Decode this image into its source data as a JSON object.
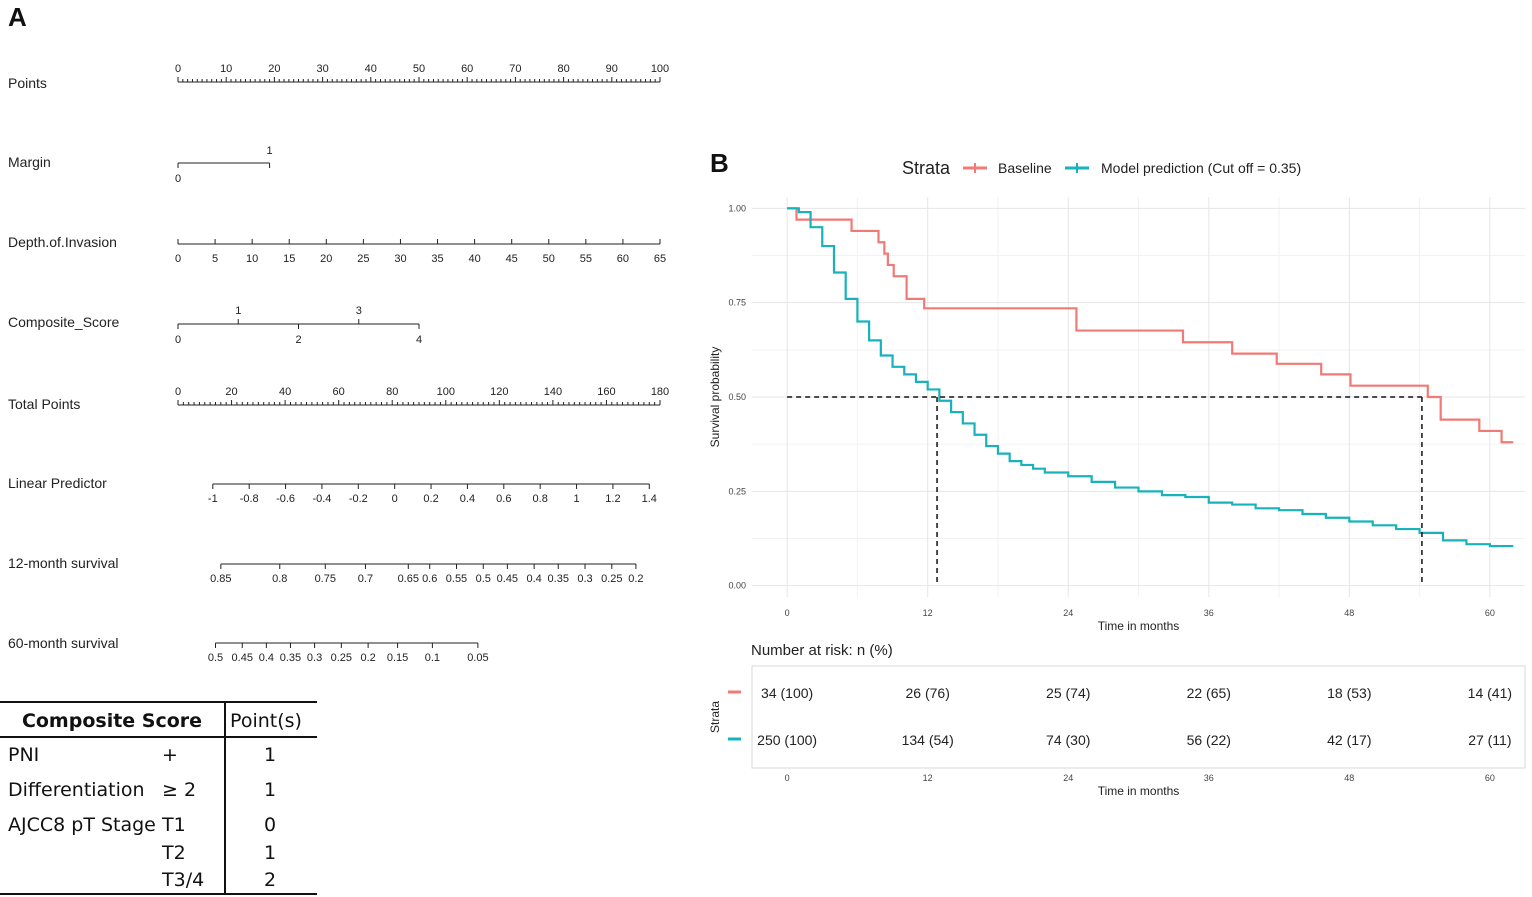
{
  "panel_a": {
    "letter": "A",
    "nomogram": {
      "rows": [
        {
          "name": "Points",
          "ticks": [
            "0",
            "10",
            "20",
            "30",
            "40",
            "50",
            "60",
            "70",
            "80",
            "90",
            "100"
          ],
          "values": [
            0,
            10,
            20,
            30,
            40,
            50,
            60,
            70,
            80,
            90,
            100
          ],
          "min_value": 0,
          "max_value": 100,
          "minor_step": 1
        },
        {
          "name": "Margin",
          "ticks": [
            "0",
            "1"
          ],
          "values": [
            0,
            1
          ],
          "points": [
            0,
            19
          ]
        },
        {
          "name": "Depth.of.Invasion",
          "ticks": [
            "0",
            "5",
            "10",
            "15",
            "20",
            "25",
            "30",
            "35",
            "40",
            "45",
            "50",
            "55",
            "60",
            "65"
          ],
          "values": [
            0,
            5,
            10,
            15,
            20,
            25,
            30,
            35,
            40,
            45,
            50,
            55,
            60,
            65
          ],
          "points_at_max": 100
        },
        {
          "name": "Composite_Score",
          "ticks": [
            "0",
            "1",
            "2",
            "3",
            "4"
          ],
          "values": [
            0,
            1,
            2,
            3,
            4
          ],
          "points_at_max": 50
        },
        {
          "name": "Total Points",
          "ticks": [
            "0",
            "20",
            "40",
            "60",
            "80",
            "100",
            "120",
            "140",
            "160",
            "180"
          ],
          "values": [
            0,
            20,
            40,
            60,
            80,
            100,
            120,
            140,
            160,
            180
          ],
          "min_value": 0,
          "max_value": 180,
          "minor_step": 2
        },
        {
          "name": "Linear Predictor",
          "ticks": [
            "-1",
            "-0.8",
            "-0.6",
            "-0.4",
            "-0.2",
            "0",
            "0.2",
            "0.4",
            "0.6",
            "0.8",
            "1",
            "1.2",
            "1.4"
          ],
          "values": [
            -1,
            -0.8,
            -0.6,
            -0.4,
            -0.2,
            0,
            0.2,
            0.4,
            0.6,
            0.8,
            1,
            1.2,
            1.4
          ],
          "total_points_range": [
            13,
            176
          ]
        },
        {
          "name": "12-month survival",
          "ticks": [
            "0.85",
            "0.8",
            "0.75",
            "0.7",
            "0.65",
            "0.6",
            "0.55",
            "0.5",
            "0.45",
            "0.4",
            "0.35",
            "0.3",
            "0.25",
            "0.2"
          ],
          "total_points_at": [
            16,
            38,
            55,
            70,
            86,
            94,
            104,
            114,
            123,
            133,
            142,
            152,
            162,
            171
          ]
        },
        {
          "name": "60-month survival",
          "ticks": [
            "0.5",
            "0.45",
            "0.4",
            "0.35",
            "0.3",
            "0.25",
            "0.2",
            "0.15",
            "0.1",
            "0.05"
          ],
          "total_points_at": [
            14,
            24,
            33,
            42,
            51,
            61,
            71,
            82,
            95,
            112
          ]
        }
      ]
    },
    "composite_table": {
      "header_left": "Composite Score",
      "header_right": "Point(s)",
      "rows": [
        {
          "item": "PNI",
          "level": "+",
          "points": "1"
        },
        {
          "item": "Differentiation",
          "level": "≥ 2",
          "points": "1"
        },
        {
          "item": "AJCC8 pT Stage",
          "level": "T1",
          "points": "0"
        },
        {
          "item": "",
          "level": "T2",
          "points": "1"
        },
        {
          "item": "",
          "level": "T3/4",
          "points": "2"
        }
      ]
    }
  },
  "panel_b": {
    "letter": "B",
    "legend": {
      "title": "Strata",
      "entries": [
        {
          "label": "Baseline",
          "color": "#f07a75"
        },
        {
          "label": "Model prediction (Cut off = 0.35)",
          "color": "#17b2bb"
        }
      ]
    },
    "chart_data": {
      "type": "line",
      "title": "",
      "xlabel": "Time in months",
      "ylabel": "Survival probability",
      "xlim": [
        -3,
        63
      ],
      "ylim": [
        -0.03,
        1.03
      ],
      "xticks": [
        0,
        12,
        24,
        36,
        48,
        60
      ],
      "yticks": [
        0.0,
        0.25,
        0.5,
        0.75,
        1.0
      ],
      "ytick_labels": [
        "0.00",
        "0.25",
        "0.50",
        "0.75",
        "1.00"
      ],
      "grid": true,
      "median_line": {
        "y": 0.5,
        "x_model": 12.8,
        "x_baseline": 54.2
      },
      "series": [
        {
          "name": "Baseline",
          "color": "#f07a75",
          "step": true,
          "x": [
            0,
            0.8,
            1.5,
            3,
            5.5,
            6.5,
            7.8,
            8.3,
            8.6,
            9.1,
            10.2,
            11.7,
            13.5,
            20,
            24.7,
            30,
            33.8,
            38,
            40,
            41.8,
            45.6,
            48.1,
            51,
            54.7,
            55.8,
            59.1,
            61,
            62
          ],
          "y": [
            1.0,
            0.97,
            0.97,
            0.97,
            0.94,
            0.94,
            0.91,
            0.88,
            0.85,
            0.82,
            0.76,
            0.735,
            0.735,
            0.735,
            0.676,
            0.676,
            0.645,
            0.615,
            0.615,
            0.588,
            0.56,
            0.53,
            0.53,
            0.5,
            0.44,
            0.41,
            0.38,
            0.38
          ]
        },
        {
          "name": "Model prediction (Cut off = 0.35)",
          "color": "#17b2bb",
          "step": true,
          "x": [
            0,
            1,
            2,
            3,
            4,
            5,
            6,
            7,
            8,
            9,
            10,
            11,
            12,
            13,
            14,
            15,
            16,
            17,
            18,
            19,
            20,
            21,
            22,
            24,
            26,
            28,
            30,
            32,
            34,
            36,
            38,
            40,
            42,
            44,
            46,
            48,
            50,
            52,
            54,
            56,
            58,
            60,
            62
          ],
          "y": [
            1.0,
            0.99,
            0.95,
            0.9,
            0.83,
            0.76,
            0.7,
            0.65,
            0.61,
            0.58,
            0.56,
            0.54,
            0.52,
            0.49,
            0.46,
            0.43,
            0.4,
            0.37,
            0.35,
            0.33,
            0.32,
            0.31,
            0.3,
            0.29,
            0.275,
            0.26,
            0.25,
            0.24,
            0.235,
            0.22,
            0.215,
            0.205,
            0.2,
            0.19,
            0.18,
            0.17,
            0.16,
            0.15,
            0.14,
            0.12,
            0.11,
            0.105,
            0.105
          ]
        }
      ]
    },
    "risk_table": {
      "title": "Number at risk: n (%)",
      "ylabel": "Strata",
      "xlabel": "Time in months",
      "times": [
        0,
        12,
        24,
        36,
        48,
        60
      ],
      "rows": [
        {
          "color": "#f07a75",
          "cells": [
            "34 (100)",
            "26 (76)",
            "25 (74)",
            "22 (65)",
            "18 (53)",
            "14 (41)"
          ]
        },
        {
          "color": "#17b2bb",
          "cells": [
            "250 (100)",
            "134 (54)",
            "74 (30)",
            "56 (22)",
            "42 (17)",
            "27 (11)"
          ]
        }
      ]
    }
  }
}
